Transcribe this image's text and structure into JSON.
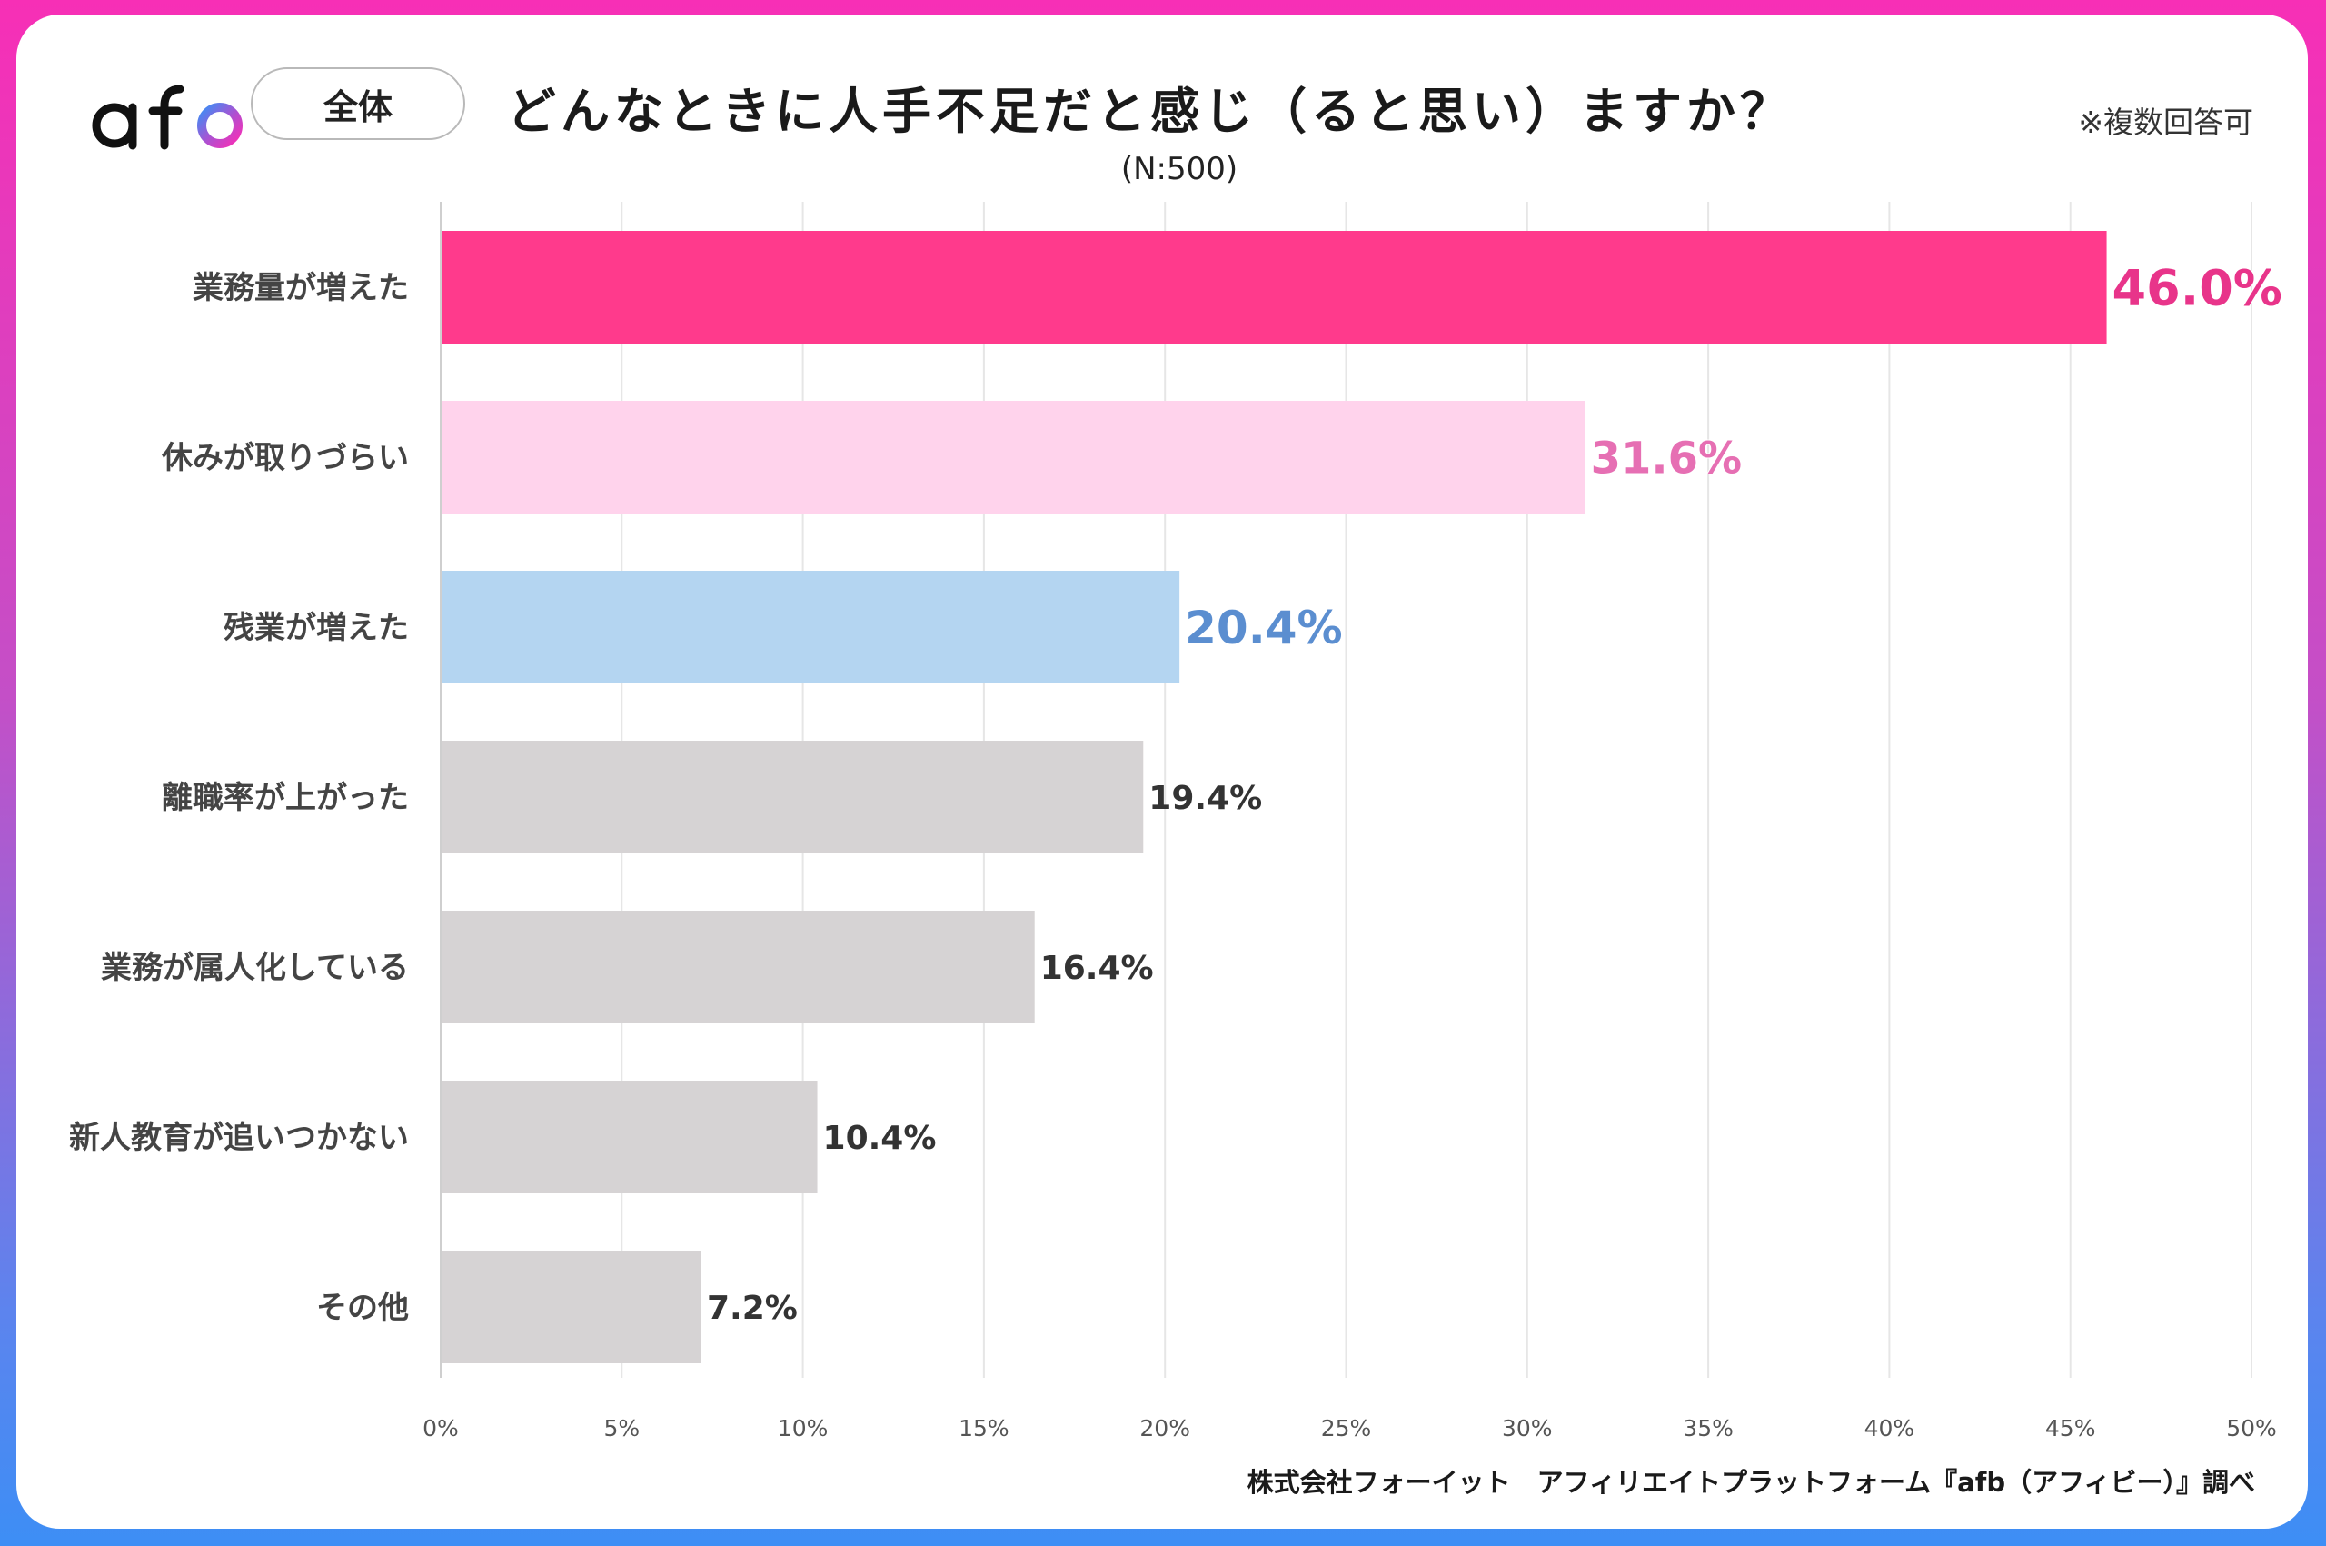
{
  "header": {
    "logo_text": "afb",
    "scope_label": "全体",
    "title": "どんなときに人手不足だと感じ（ると思い）ますか？",
    "subtitle": "(N:500)",
    "note": "※複数回答可"
  },
  "footer": {
    "credit": "株式会社フォーイット　アフィリエイトプラットフォーム『afb（アフィビー）』調べ"
  },
  "colors": {
    "highlight_1": "#ff3a8c",
    "highlight_1_label": "#e8348a",
    "highlight_2": "#ffd3ec",
    "highlight_2_label": "#e66fb3",
    "highlight_3": "#b4d5f1",
    "highlight_3_label": "#5b8ed0",
    "neutral": "#d6d3d4",
    "neutral_label": "#333333",
    "grid": "#e6e6e6"
  },
  "chart_data": {
    "type": "bar",
    "orientation": "horizontal",
    "categories": [
      "業務量が増えた",
      "休みが取りづらい",
      "残業が増えた",
      "離職率が上がった",
      "業務が属人化している",
      "新人教育が追いつかない",
      "その他"
    ],
    "values": [
      46.0,
      31.6,
      20.4,
      19.4,
      16.4,
      10.4,
      7.2
    ],
    "value_labels": [
      "46.0%",
      "31.6%",
      "20.4%",
      "19.4%",
      "16.4%",
      "10.4%",
      "7.2%"
    ],
    "xlim": [
      0,
      50
    ],
    "x_ticks": [
      0,
      5,
      10,
      15,
      20,
      25,
      30,
      35,
      40,
      45,
      50
    ],
    "x_tick_labels": [
      "0%",
      "5%",
      "10%",
      "15%",
      "20%",
      "25%",
      "30%",
      "35%",
      "40%",
      "45%",
      "50%"
    ],
    "grid": true,
    "legend": "none"
  }
}
